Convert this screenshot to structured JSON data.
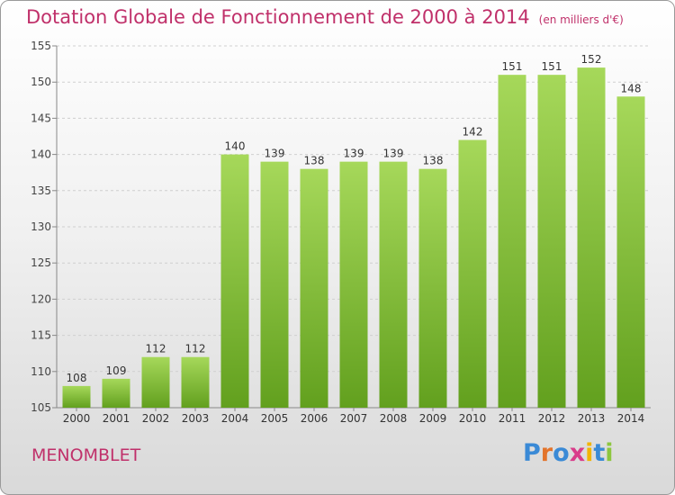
{
  "header": {
    "title": "Dotation Globale de Fonctionnement de 2000 à 2014",
    "unit": "(en milliers d'€)"
  },
  "footer": {
    "commune": "MENOMBLET",
    "logo": {
      "letters": [
        "P",
        "r",
        "o",
        "x",
        "i",
        "t",
        "i"
      ],
      "colors": [
        "#3a8ad6",
        "#e3742b",
        "#3a8ad6",
        "#d93c8a",
        "#f2b400",
        "#3a8ad6",
        "#8dc63f"
      ]
    }
  },
  "colors": {
    "bar_light": "#a6d85a",
    "bar_dark": "#62a01e",
    "title": "#c0306a"
  },
  "chart_data": {
    "type": "bar",
    "title": "Dotation Globale de Fonctionnement de 2000 à 2014",
    "categories": [
      "2000",
      "2001",
      "2002",
      "2003",
      "2004",
      "2005",
      "2006",
      "2007",
      "2008",
      "2009",
      "2010",
      "2011",
      "2012",
      "2013",
      "2014"
    ],
    "values": [
      108,
      109,
      112,
      112,
      140,
      139,
      138,
      139,
      139,
      138,
      142,
      151,
      151,
      152,
      148
    ],
    "ylim": [
      105,
      155
    ],
    "yticks": [
      105,
      110,
      115,
      120,
      125,
      130,
      135,
      140,
      145,
      150,
      155
    ],
    "grid": true
  }
}
